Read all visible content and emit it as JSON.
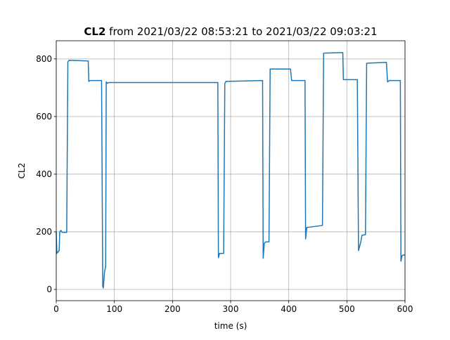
{
  "chart_data": {
    "type": "line",
    "title_label": "CL2",
    "title": "from 2021/03/22 08:53:21 to 2021/03/22 09:03:21",
    "x_label": "time (s)",
    "y_label": "CL2",
    "xlim": [
      0,
      600
    ],
    "ylim": [
      -39,
      863
    ],
    "xticks": [
      0,
      100,
      200,
      300,
      400,
      500,
      600
    ],
    "yticks": [
      0,
      200,
      400,
      600,
      800
    ],
    "grid": true,
    "series": [
      {
        "color": "#1f77b4",
        "x": [
          0,
          1,
          5,
          6,
          8,
          10,
          18,
          20,
          22,
          55,
          56,
          58,
          78,
          80,
          81,
          83,
          85,
          86,
          88,
          90,
          278,
          279,
          281,
          288,
          290,
          292,
          355,
          356,
          358,
          360,
          366,
          368,
          403,
          405,
          428,
          429,
          431,
          458,
          460,
          493,
          494,
          518,
          520,
          524,
          526,
          532,
          534,
          568,
          570,
          573,
          592,
          593,
          595,
          600
        ],
        "values": [
          200,
          125,
          135,
          200,
          205,
          198,
          198,
          790,
          795,
          793,
          722,
          725,
          725,
          10,
          5,
          60,
          80,
          720,
          715,
          718,
          718,
          110,
          125,
          125,
          715,
          722,
          725,
          108,
          160,
          165,
          165,
          765,
          765,
          725,
          725,
          175,
          215,
          222,
          820,
          822,
          728,
          728,
          135,
          165,
          188,
          190,
          785,
          788,
          720,
          725,
          725,
          98,
          118,
          120
        ]
      }
    ]
  }
}
